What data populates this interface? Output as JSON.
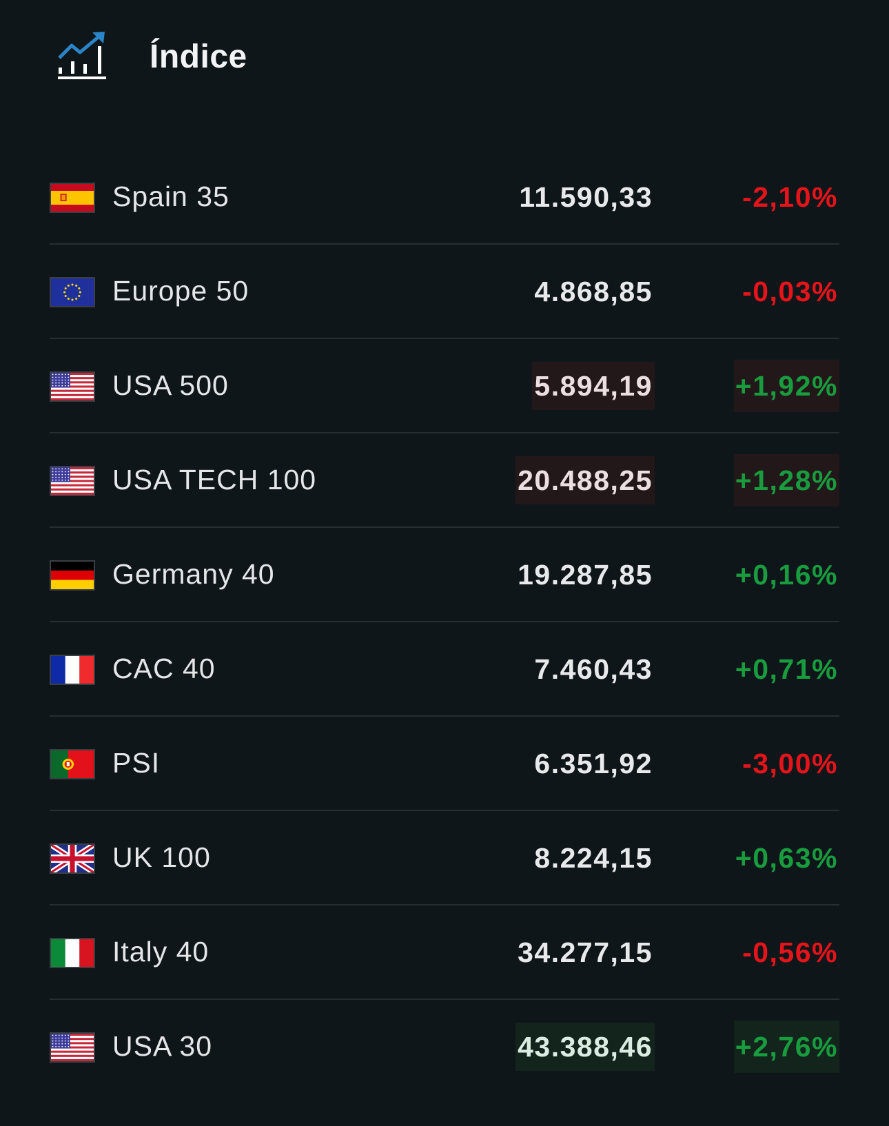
{
  "header": {
    "icon": "chart-trend-icon",
    "title": "Índice"
  },
  "colors": {
    "background": "#0f161a",
    "negative": "#e4141a",
    "positive": "#189c3e",
    "accent": "#2a86c8"
  },
  "indices": [
    {
      "name": "Spain 35",
      "flag": "es-flag-icon",
      "price": "11.590,33",
      "change": "-2,10%",
      "direction": "neg",
      "highlight": "none"
    },
    {
      "name": "Europe 50",
      "flag": "eu-flag-icon",
      "price": "4.868,85",
      "change": "-0,03%",
      "direction": "neg",
      "highlight": "none"
    },
    {
      "name": "USA 500",
      "flag": "us-flag-icon",
      "price": "5.894,19",
      "change": "+1,92%",
      "direction": "pos",
      "highlight": "red"
    },
    {
      "name": "USA TECH 100",
      "flag": "us-flag-icon",
      "price": "20.488,25",
      "change": "+1,28%",
      "direction": "pos",
      "highlight": "red"
    },
    {
      "name": "Germany 40",
      "flag": "de-flag-icon",
      "price": "19.287,85",
      "change": "+0,16%",
      "direction": "pos",
      "highlight": "none"
    },
    {
      "name": "CAC 40",
      "flag": "fr-flag-icon",
      "price": "7.460,43",
      "change": "+0,71%",
      "direction": "pos",
      "highlight": "none"
    },
    {
      "name": "PSI",
      "flag": "pt-flag-icon",
      "price": "6.351,92",
      "change": "-3,00%",
      "direction": "neg",
      "highlight": "none"
    },
    {
      "name": "UK 100",
      "flag": "uk-flag-icon",
      "price": "8.224,15",
      "change": "+0,63%",
      "direction": "pos",
      "highlight": "none"
    },
    {
      "name": "Italy 40",
      "flag": "it-flag-icon",
      "price": "34.277,15",
      "change": "-0,56%",
      "direction": "neg",
      "highlight": "none"
    },
    {
      "name": "USA 30",
      "flag": "us-flag-icon",
      "price": "43.388,46",
      "change": "+2,76%",
      "direction": "pos",
      "highlight": "green"
    }
  ]
}
